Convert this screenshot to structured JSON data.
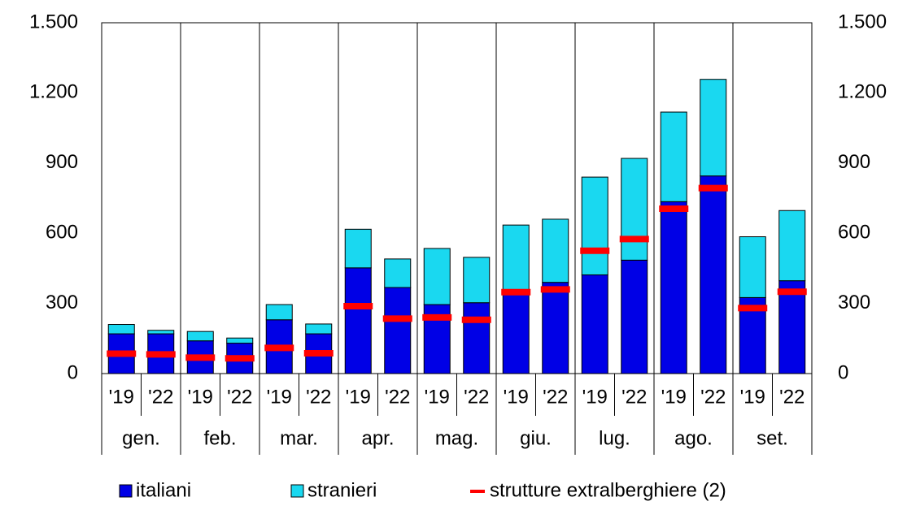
{
  "chart_data": {
    "type": "bar",
    "stacked": true,
    "categories": [
      "'19",
      "'22",
      "'19",
      "'22",
      "'19",
      "'22",
      "'19",
      "'22",
      "'19",
      "'22",
      "'19",
      "'22",
      "'19",
      "'22",
      "'19",
      "'22",
      "'19",
      "'22"
    ],
    "groups": [
      "gen.",
      "feb.",
      "mar.",
      "apr.",
      "mag.",
      "giu.",
      "lug.",
      "ago.",
      "set."
    ],
    "series": [
      {
        "name": "italiani",
        "color": "#0000e6",
        "values": [
          170,
          170,
          140,
          130,
          230,
          170,
          452,
          368,
          295,
          303,
          340,
          390,
          422,
          485,
          735,
          845,
          325,
          397
        ]
      },
      {
        "name": "stranieri",
        "color": "#1ad8f0",
        "values": [
          40,
          15,
          40,
          22,
          65,
          42,
          165,
          122,
          240,
          194,
          295,
          270,
          418,
          435,
          383,
          413,
          260,
          300
        ]
      },
      {
        "name": "strutture extralberghiere (2)",
        "color": "#ff0000",
        "marker": "dash",
        "values": [
          85,
          82,
          68,
          65,
          110,
          87,
          288,
          235,
          240,
          230,
          348,
          360,
          525,
          575,
          705,
          793,
          280,
          350
        ]
      }
    ],
    "ylim": [
      0,
      1500
    ],
    "yticks": [
      0,
      300,
      600,
      900,
      {
        "value": 1200,
        "label": "1.200"
      },
      {
        "value": 1500,
        "label": "1.500"
      }
    ],
    "y2lim": [
      0,
      1500
    ],
    "y2ticks": [
      0,
      300,
      600,
      900,
      {
        "value": 1200,
        "label": "1.200"
      },
      {
        "value": 1500,
        "label": "1.500"
      }
    ],
    "legend": "bottom"
  }
}
